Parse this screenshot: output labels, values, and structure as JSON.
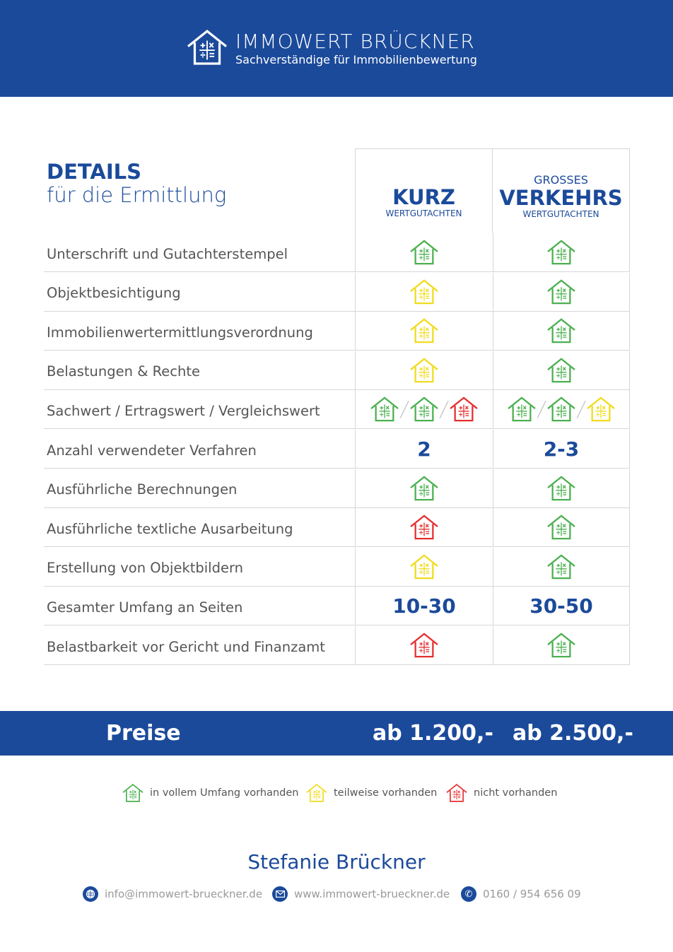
{
  "header": {
    "brand": "IMMOWERT BRÜCKNER",
    "tagline": "Sachverständige für Immobilienbewertung"
  },
  "details": {
    "title": "DETAILS",
    "subtitle": "für die Ermittlung"
  },
  "columns": [
    {
      "prefix": "",
      "name": "KURZ",
      "suffix": "WERTGUTACHTEN"
    },
    {
      "prefix": "GROSSES",
      "name": "VERKEHRS",
      "suffix": "WERTGUTACHTEN"
    }
  ],
  "colors": {
    "brand": "#1b4a9a",
    "green": "#4cb050",
    "yellow": "#f0dc1e",
    "red": "#e53030"
  },
  "rows": [
    {
      "label": "Unterschrift und Gutachterstempel",
      "kurz": [
        "green"
      ],
      "verkehrs": [
        "green"
      ]
    },
    {
      "label": "Objektbesichtigung",
      "kurz": [
        "yellow"
      ],
      "verkehrs": [
        "green"
      ]
    },
    {
      "label": "Immobilienwertermittlungsverordnung",
      "kurz": [
        "yellow"
      ],
      "verkehrs": [
        "green"
      ]
    },
    {
      "label": "Belastungen & Rechte",
      "kurz": [
        "yellow"
      ],
      "verkehrs": [
        "green"
      ]
    },
    {
      "label": "Sachwert / Ertragswert / Vergleichswert",
      "kurz": [
        "green",
        "green",
        "red"
      ],
      "verkehrs": [
        "green",
        "green",
        "yellow"
      ]
    },
    {
      "label": "Anzahl verwendeter Verfahren",
      "kurz": "2",
      "verkehrs": "2-3"
    },
    {
      "label": "Ausführliche Berechnungen",
      "kurz": [
        "green"
      ],
      "verkehrs": [
        "green"
      ]
    },
    {
      "label": "Ausführliche textliche Ausarbeitung",
      "kurz": [
        "red"
      ],
      "verkehrs": [
        "green"
      ]
    },
    {
      "label": "Erstellung von Objektbildern",
      "kurz": [
        "yellow"
      ],
      "verkehrs": [
        "green"
      ]
    },
    {
      "label": "Gesamter Umfang an Seiten",
      "kurz": "10-30",
      "verkehrs": "30-50"
    },
    {
      "label": "Belastbarkeit vor Gericht und Finanzamt",
      "kurz": [
        "red"
      ],
      "verkehrs": [
        "green"
      ]
    }
  ],
  "prices": {
    "label": "Preise",
    "kurz": "ab 1.200,-",
    "verkehrs": "ab 2.500,-"
  },
  "legend": [
    {
      "status": "green",
      "label": "in vollem Umfang vorhanden"
    },
    {
      "status": "yellow",
      "label": "teilweise vorhanden"
    },
    {
      "status": "red",
      "label": "nicht vorhanden"
    }
  ],
  "contact": {
    "name": "Stefanie Brückner",
    "email": "info@immowert-brueckner.de",
    "web": "www.immowert-brueckner.de",
    "phone": "0160 / 954 656 09"
  }
}
